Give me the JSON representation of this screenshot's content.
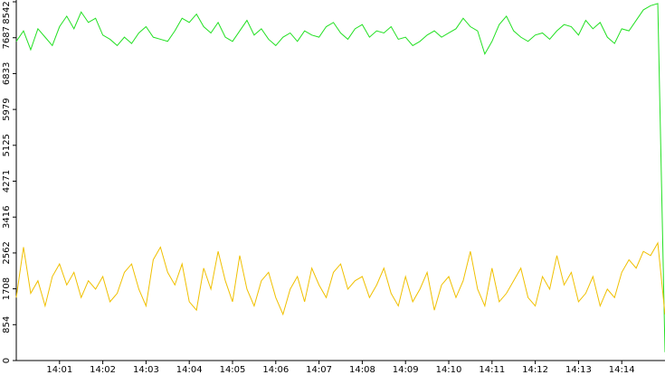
{
  "chart_data": {
    "type": "line",
    "x": [
      "14:00:00",
      "14:00:10",
      "14:00:20",
      "14:00:30",
      "14:00:40",
      "14:00:50",
      "14:01:00",
      "14:01:10",
      "14:01:20",
      "14:01:30",
      "14:01:40",
      "14:01:50",
      "14:02:00",
      "14:02:10",
      "14:02:20",
      "14:02:30",
      "14:02:40",
      "14:02:50",
      "14:03:00",
      "14:03:10",
      "14:03:20",
      "14:03:30",
      "14:03:40",
      "14:03:50",
      "14:04:00",
      "14:04:10",
      "14:04:20",
      "14:04:30",
      "14:04:40",
      "14:04:50",
      "14:05:00",
      "14:05:10",
      "14:05:20",
      "14:05:30",
      "14:05:40",
      "14:05:50",
      "14:06:00",
      "14:06:10",
      "14:06:20",
      "14:06:30",
      "14:06:40",
      "14:06:50",
      "14:07:00",
      "14:07:10",
      "14:07:20",
      "14:07:30",
      "14:07:40",
      "14:07:50",
      "14:08:00",
      "14:08:10",
      "14:08:20",
      "14:08:30",
      "14:08:40",
      "14:08:50",
      "14:09:00",
      "14:09:10",
      "14:09:20",
      "14:09:30",
      "14:09:40",
      "14:09:50",
      "14:10:00",
      "14:10:10",
      "14:10:20",
      "14:10:30",
      "14:10:40",
      "14:10:50",
      "14:11:00",
      "14:11:10",
      "14:11:20",
      "14:11:30",
      "14:11:40",
      "14:11:50",
      "14:12:00",
      "14:12:10",
      "14:12:20",
      "14:12:30",
      "14:12:40",
      "14:12:50",
      "14:13:00",
      "14:13:10",
      "14:13:20",
      "14:13:30",
      "14:13:40",
      "14:13:50",
      "14:14:00",
      "14:14:10",
      "14:14:20",
      "14:14:30",
      "14:14:40",
      "14:14:50",
      "14:15:00"
    ],
    "series": [
      {
        "color": "#22e022",
        "values": [
          7600,
          7850,
          7400,
          7900,
          7700,
          7500,
          7950,
          8200,
          7900,
          8300,
          8050,
          8150,
          7750,
          7650,
          7500,
          7700,
          7550,
          7800,
          7950,
          7700,
          7650,
          7600,
          7850,
          8150,
          8050,
          8250,
          7950,
          7800,
          8050,
          7700,
          7600,
          7850,
          8100,
          7750,
          7900,
          7650,
          7500,
          7700,
          7800,
          7600,
          7850,
          7750,
          7700,
          7950,
          8050,
          7800,
          7650,
          7900,
          8000,
          7700,
          7850,
          7800,
          7950,
          7650,
          7700,
          7500,
          7600,
          7750,
          7850,
          7700,
          7800,
          7900,
          8150,
          7950,
          7850,
          7300,
          7600,
          8000,
          8200,
          7850,
          7700,
          7600,
          7750,
          7800,
          7650,
          7850,
          8000,
          7950,
          7750,
          8100,
          7900,
          8050,
          7700,
          7550,
          7900,
          7850,
          8100,
          8350,
          8450,
          8500,
          200
        ]
      },
      {
        "color": "#f0c000",
        "values": [
          1500,
          2700,
          1600,
          1900,
          1300,
          2000,
          2300,
          1800,
          2100,
          1500,
          1900,
          1700,
          2000,
          1400,
          1600,
          2100,
          2300,
          1700,
          1300,
          2400,
          2700,
          2100,
          1800,
          2300,
          1400,
          1200,
          2200,
          1700,
          2600,
          1900,
          1400,
          2500,
          1700,
          1300,
          1900,
          2100,
          1500,
          1100,
          1700,
          2000,
          1400,
          2200,
          1800,
          1500,
          2100,
          2300,
          1700,
          1900,
          2000,
          1500,
          1800,
          2200,
          1600,
          1300,
          2000,
          1400,
          1700,
          2100,
          1200,
          1800,
          2000,
          1500,
          1900,
          2600,
          1700,
          1300,
          2200,
          1400,
          1600,
          1900,
          2200,
          1500,
          1300,
          2000,
          1700,
          2500,
          1800,
          2100,
          1400,
          1600,
          2000,
          1300,
          1700,
          1500,
          2100,
          2400,
          2200,
          2600,
          2500,
          2800,
          1100
        ]
      }
    ],
    "xlim": [
      "14:00:00",
      "14:15:00"
    ],
    "xticks": [
      "14:01",
      "14:02",
      "14:03",
      "14:04",
      "14:05",
      "14:06",
      "14:07",
      "14:08",
      "14:09",
      "14:10",
      "14:11",
      "14:12",
      "14:13",
      "14:14"
    ],
    "ylim": [
      0,
      8542
    ],
    "yticks": [
      0,
      854,
      1708,
      2562,
      3416,
      4271,
      5125,
      5979,
      6833,
      7687,
      8542
    ]
  }
}
